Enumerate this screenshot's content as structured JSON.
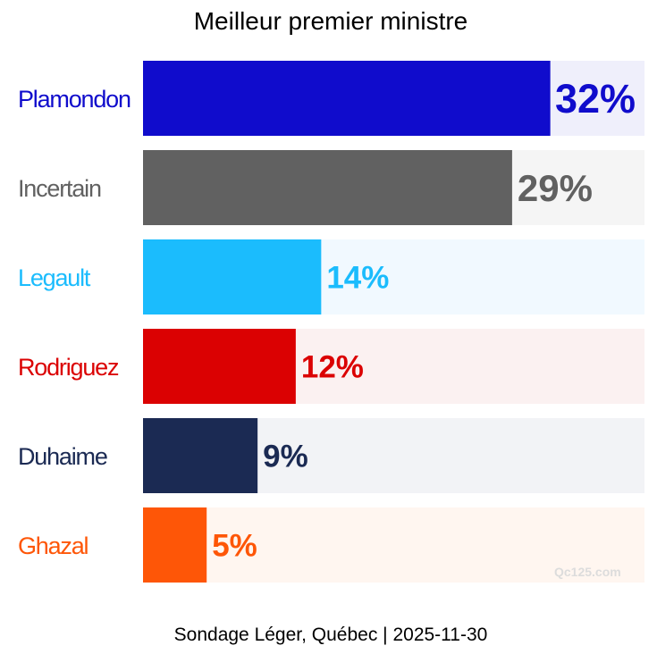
{
  "chart_data": {
    "type": "bar",
    "orientation": "horizontal",
    "title": "Meilleur premier ministre",
    "categories": [
      "Plamondon",
      "Incertain",
      "Legault",
      "Rodriguez",
      "Duhaime",
      "Ghazal"
    ],
    "values": [
      32,
      29,
      14,
      12,
      9,
      5
    ],
    "value_labels": [
      "32%",
      "29%",
      "14%",
      "12%",
      "9%",
      "5%"
    ],
    "colors": [
      "#100ccc",
      "#616161",
      "#1bbcfd",
      "#db0102",
      "#1b2a53",
      "#fe5607"
    ],
    "background_colors": [
      "#efeffb",
      "#f5f5f5",
      "#f1f9ff",
      "#fbf1f1",
      "#f2f3f6",
      "#fff6f0"
    ],
    "xlim": [
      0,
      39.4
    ],
    "grid": false,
    "legend": "none"
  },
  "watermark": "Qc125.com",
  "footer": "Sondage Léger, Québec | 2025-11-30"
}
